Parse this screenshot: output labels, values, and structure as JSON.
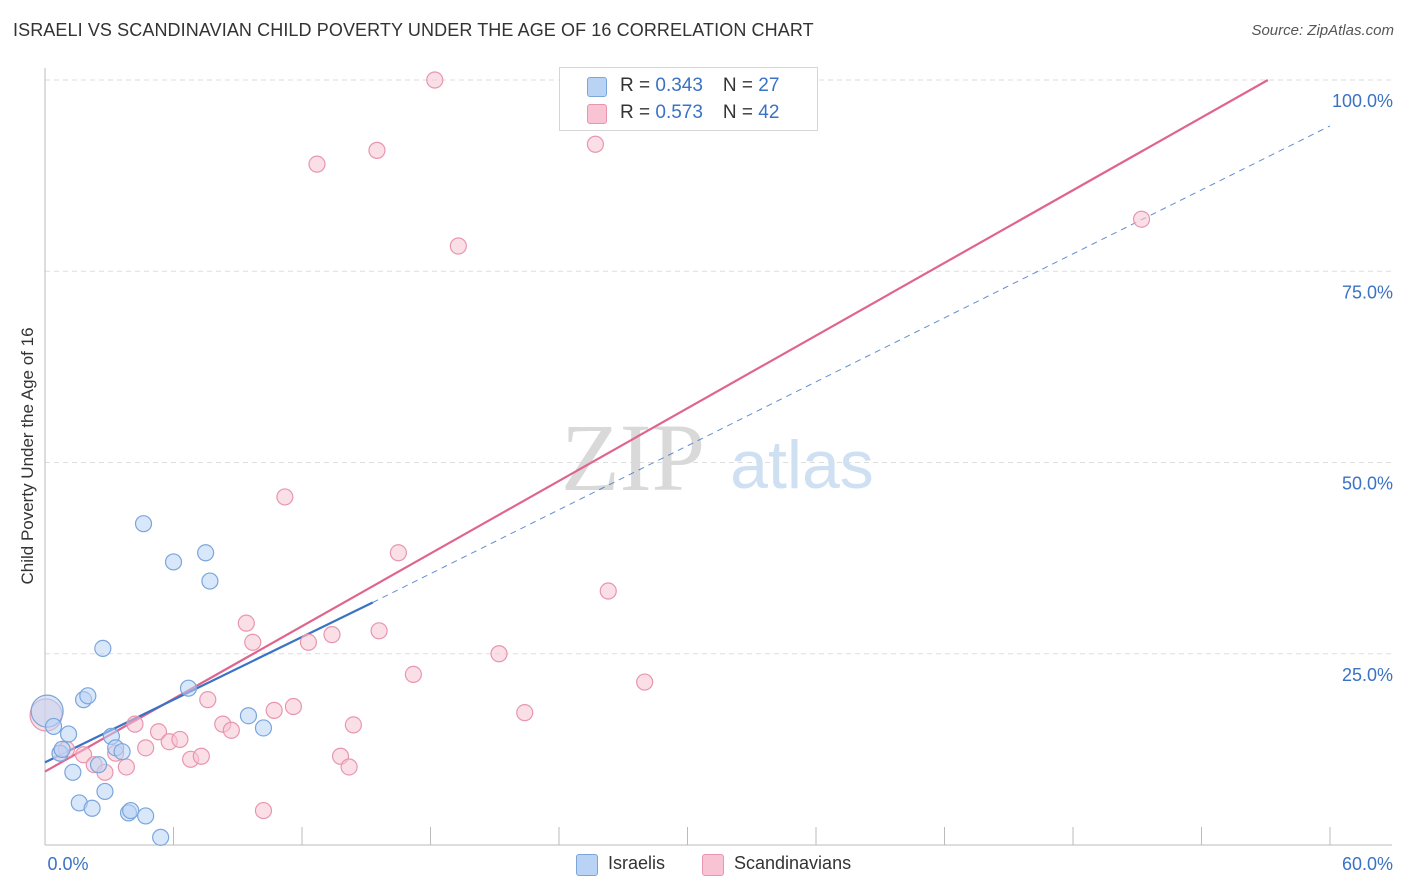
{
  "title": "ISRAELI VS SCANDINAVIAN CHILD POVERTY UNDER THE AGE OF 16 CORRELATION CHART",
  "source": "Source: ZipAtlas.com",
  "watermark": {
    "zip": "ZIP",
    "atlas": "atlas"
  },
  "colors": {
    "israelis_fill": "#b9d3f5",
    "israelis_stroke": "#7aa6dc",
    "israelis_line": "#3a72c4",
    "scandinavians_fill": "#f8c4d4",
    "scandinavians_stroke": "#e896b0",
    "scandinavians_line": "#e0658c",
    "tick_label": "#3a72c4",
    "grid": "#dddddd"
  },
  "legend_top": [
    {
      "r_label": "R = ",
      "r_value": "0.343",
      "n_label": "N = ",
      "n_value": "27"
    },
    {
      "r_label": "R = ",
      "r_value": "0.573",
      "n_label": "N = ",
      "n_value": "42"
    }
  ],
  "legend_bottom": [
    "Israelis",
    "Scandinavians"
  ],
  "chart_data": {
    "type": "scatter",
    "title": "ISRAELI VS SCANDINAVIAN CHILD POVERTY UNDER THE AGE OF 16 CORRELATION CHART",
    "xlabel": "",
    "ylabel": "Child Poverty Under the Age of 16",
    "xlim": [
      0,
      60
    ],
    "ylim": [
      0,
      100
    ],
    "x_tick_labels": [
      "0.0%",
      "60.0%"
    ],
    "y_ticks": [
      25,
      50,
      75,
      100
    ],
    "y_tick_labels": [
      "25.0%",
      "50.0%",
      "75.0%",
      "100.0%"
    ],
    "grid": true,
    "legend_position": "top-center",
    "series": [
      {
        "name": "Israelis",
        "r": 0.343,
        "n": 27,
        "points": [
          [
            0.1,
            17.5,
            2.0
          ],
          [
            0.4,
            15.5,
            1
          ],
          [
            0.7,
            12.0,
            1
          ],
          [
            0.8,
            12.5,
            1
          ],
          [
            1.1,
            14.5,
            1
          ],
          [
            1.3,
            9.5,
            1
          ],
          [
            1.6,
            5.5,
            1
          ],
          [
            1.8,
            19.0,
            1
          ],
          [
            2.0,
            19.5,
            1
          ],
          [
            2.2,
            4.8,
            1
          ],
          [
            2.5,
            10.5,
            1
          ],
          [
            2.8,
            7.0,
            1
          ],
          [
            2.7,
            25.7,
            1
          ],
          [
            3.1,
            14.2,
            1
          ],
          [
            3.3,
            12.7,
            1
          ],
          [
            3.6,
            12.2,
            1
          ],
          [
            3.9,
            4.2,
            1
          ],
          [
            4.0,
            4.5,
            1
          ],
          [
            4.6,
            42.0,
            1
          ],
          [
            4.7,
            3.8,
            1
          ],
          [
            5.4,
            1.0,
            1
          ],
          [
            6.0,
            37.0,
            1
          ],
          [
            6.7,
            20.5,
            1
          ],
          [
            7.5,
            38.2,
            1
          ],
          [
            7.7,
            34.5,
            1
          ],
          [
            9.5,
            16.9,
            1
          ],
          [
            10.2,
            15.3,
            1
          ]
        ],
        "trend": {
          "x": [
            0,
            15.3
          ],
          "y": [
            10.8,
            31.7
          ],
          "dashed_extension": {
            "x": [
              15.3,
              60
            ],
            "y": [
              31.7,
              94.0
            ]
          }
        }
      },
      {
        "name": "Scandinavians",
        "r": 0.573,
        "n": 42,
        "points": [
          [
            0.05,
            17.0,
            2.0
          ],
          [
            0.7,
            12.0,
            1
          ],
          [
            1.0,
            12.5,
            1
          ],
          [
            1.8,
            11.8,
            1
          ],
          [
            2.3,
            10.5,
            1
          ],
          [
            2.8,
            9.5,
            1
          ],
          [
            3.3,
            12.0,
            1
          ],
          [
            3.8,
            10.2,
            1
          ],
          [
            4.2,
            15.8,
            1
          ],
          [
            4.7,
            12.7,
            1
          ],
          [
            5.3,
            14.8,
            1
          ],
          [
            5.8,
            13.5,
            1
          ],
          [
            6.3,
            13.8,
            1
          ],
          [
            6.8,
            11.2,
            1
          ],
          [
            7.3,
            11.6,
            1
          ],
          [
            7.6,
            19.0,
            1
          ],
          [
            8.3,
            15.8,
            1
          ],
          [
            8.7,
            15.0,
            1
          ],
          [
            9.4,
            29.0,
            1
          ],
          [
            9.7,
            26.5,
            1
          ],
          [
            10.2,
            4.5,
            1
          ],
          [
            10.7,
            17.6,
            1
          ],
          [
            11.2,
            45.5,
            1
          ],
          [
            11.6,
            18.1,
            1
          ],
          [
            12.3,
            26.5,
            1
          ],
          [
            12.7,
            89.0,
            1
          ],
          [
            13.4,
            27.5,
            1
          ],
          [
            13.8,
            11.6,
            1
          ],
          [
            14.2,
            10.2,
            1
          ],
          [
            14.4,
            15.7,
            1
          ],
          [
            15.5,
            90.8,
            1
          ],
          [
            15.6,
            28.0,
            1
          ],
          [
            16.5,
            38.2,
            1
          ],
          [
            17.2,
            22.3,
            1
          ],
          [
            18.2,
            100.0,
            1
          ],
          [
            19.3,
            78.3,
            1
          ],
          [
            21.2,
            25.0,
            1
          ],
          [
            22.4,
            17.3,
            1
          ],
          [
            25.7,
            91.6,
            1
          ],
          [
            26.3,
            33.2,
            1
          ],
          [
            28.0,
            21.3,
            1
          ],
          [
            51.2,
            81.8,
            1
          ]
        ],
        "trend": {
          "x": [
            0,
            57.1
          ],
          "y": [
            9.6,
            100.0
          ]
        }
      }
    ]
  }
}
